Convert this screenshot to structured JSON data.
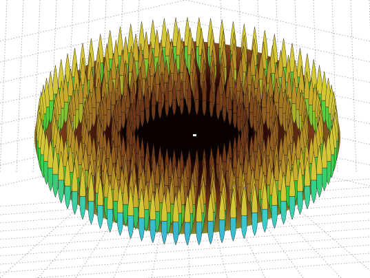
{
  "chart_data": {
    "type": "surface",
    "grid": true
  }
}
